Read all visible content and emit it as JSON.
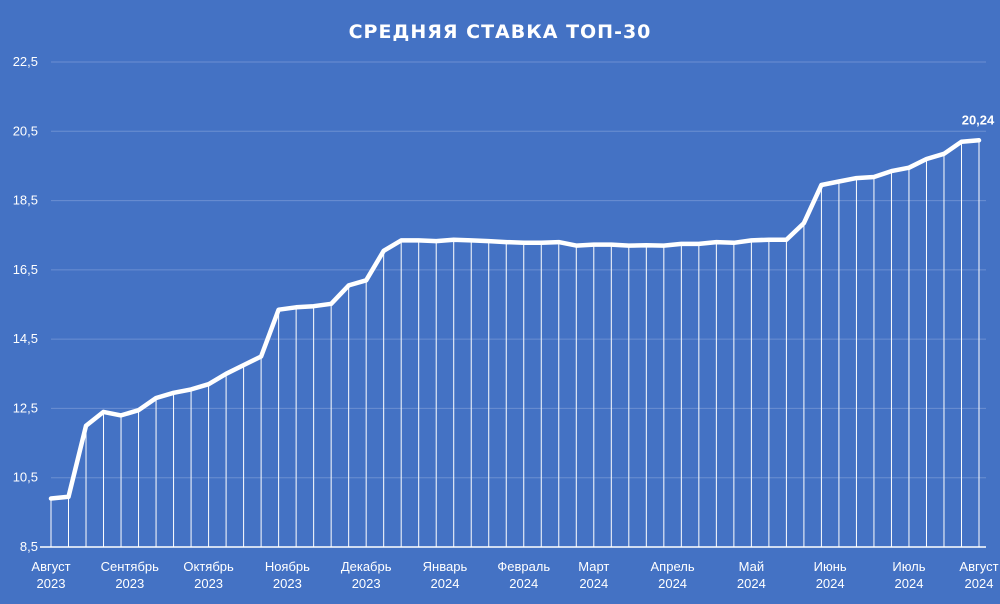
{
  "chart_data": {
    "type": "line",
    "title": "СРЕДНЯЯ СТАВКА ТОП-30",
    "ylim": [
      8.5,
      22.5
    ],
    "yticks": [
      "8,5",
      "10,5",
      "12,5",
      "14,5",
      "16,5",
      "18,5",
      "20,5",
      "22,5"
    ],
    "grid": true,
    "drop_lines": true,
    "line_color": "#FFFFFF",
    "background_color": "#4472C4",
    "values": [
      9.9,
      9.95,
      12.0,
      12.4,
      12.3,
      12.45,
      12.8,
      12.95,
      13.05,
      13.2,
      13.5,
      13.75,
      14.0,
      15.35,
      15.42,
      15.45,
      15.52,
      16.05,
      16.2,
      17.05,
      17.35,
      17.35,
      17.33,
      17.37,
      17.35,
      17.33,
      17.3,
      17.28,
      17.28,
      17.3,
      17.2,
      17.23,
      17.23,
      17.2,
      17.21,
      17.2,
      17.25,
      17.25,
      17.3,
      17.28,
      17.35,
      17.37,
      17.37,
      17.85,
      18.95,
      19.05,
      19.15,
      19.18,
      19.35,
      19.45,
      19.7,
      19.85,
      20.2,
      20.24
    ],
    "data_labels": [
      {
        "index": 53,
        "text": "20,24"
      }
    ],
    "x_labels": [
      {
        "line1": "Август",
        "line2": "2023",
        "index": 0
      },
      {
        "line1": "Сентябрь",
        "line2": "2023",
        "index": 4.5
      },
      {
        "line1": "Октябрь",
        "line2": "2023",
        "index": 9
      },
      {
        "line1": "Ноябрь",
        "line2": "2023",
        "index": 13.5
      },
      {
        "line1": "Декабрь",
        "line2": "2023",
        "index": 18
      },
      {
        "line1": "Январь",
        "line2": "2024",
        "index": 22.5
      },
      {
        "line1": "Февраль",
        "line2": "2024",
        "index": 27
      },
      {
        "line1": "Март",
        "line2": "2024",
        "index": 31
      },
      {
        "line1": "Апрель",
        "line2": "2024",
        "index": 35.5
      },
      {
        "line1": "Май",
        "line2": "2024",
        "index": 40
      },
      {
        "line1": "Июнь",
        "line2": "2024",
        "index": 44.5
      },
      {
        "line1": "Июль",
        "line2": "2024",
        "index": 49
      },
      {
        "line1": "Август",
        "line2": "2024",
        "index": 53
      }
    ]
  }
}
